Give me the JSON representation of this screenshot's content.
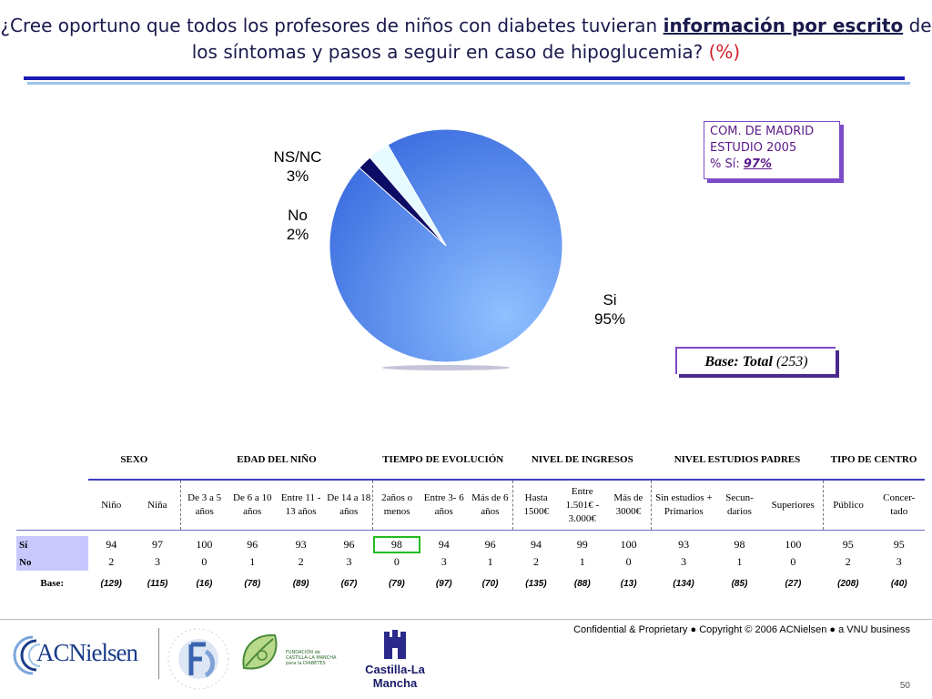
{
  "title": {
    "part1": "¿Cree oportuno que todos los profesores de niños con diabetes tuvieran",
    "emphasis": "información por escrito",
    "part2": "de los síntomas y pasos a seguir en caso de hipoglucemia?",
    "pct": "(%)"
  },
  "chart_data": [
    {
      "type": "pie",
      "slices": [
        {
          "label": "Si",
          "value": 95,
          "value_label": "95%",
          "color": "#5b8cf0"
        },
        {
          "label": "NS/NC",
          "value": 3,
          "value_label": "3%",
          "color": "#e6fbff"
        },
        {
          "label": "No",
          "value": 2,
          "value_label": "2%",
          "color": "#0c0c66"
        }
      ]
    },
    {
      "type": "table",
      "groups": [
        {
          "label": "SEXO",
          "span": 2
        },
        {
          "label": "EDAD DEL NIÑO",
          "span": 4
        },
        {
          "label": "TIEMPO DE EVOLUCIÓN",
          "span": 3
        },
        {
          "label": "NIVEL DE INGRESOS",
          "span": 3
        },
        {
          "label": "NIVEL ESTUDIOS PADRES",
          "span": 3
        },
        {
          "label": "TIPO DE CENTRO",
          "span": 2
        }
      ],
      "columns": [
        "Niño",
        "Niña",
        "De 3 a 5 años",
        "De 6 a 10 años",
        "Entre 11 - 13 años",
        "De 14 a 18 años",
        "2años o menos",
        "Entre 3- 6 años",
        "Más de 6 años",
        "Hasta 1500€",
        "Entre 1.501€ - 3.000€",
        "Más de 3000€",
        "Sin estudios + Primarios",
        "Secun- darios",
        "Superiores",
        "Público",
        "Concer- tado"
      ],
      "rows": [
        {
          "label": "Sí",
          "values": [
            94,
            97,
            100,
            96,
            93,
            96,
            98,
            94,
            96,
            94,
            99,
            100,
            93,
            98,
            100,
            95,
            95
          ]
        },
        {
          "label": "No",
          "values": [
            2,
            3,
            0,
            1,
            2,
            3,
            0,
            3,
            1,
            2,
            1,
            0,
            3,
            1,
            0,
            2,
            3
          ]
        }
      ],
      "base_label": "Base:",
      "bases": [
        "(129)",
        "(115)",
        "(16)",
        "(78)",
        "(89)",
        "(67)",
        "(79)",
        "(97)",
        "(70)",
        "(135)",
        "(88)",
        "(13)",
        "(134)",
        "(85)",
        "(27)",
        "(208)",
        "(40)"
      ]
    }
  ],
  "infobox": {
    "line1": "COM. DE MADRID",
    "line2": "ESTUDIO 2005",
    "line3_prefix": "% Sí:",
    "line3_value": "97%"
  },
  "basebox": {
    "label": "Base: Total",
    "value": "(253)"
  },
  "footer": {
    "text": "Confidential & Proprietary ● Copyright © 2006 ACNielsen ● a VNU business",
    "page": "50"
  },
  "logos": {
    "acnielsen": "ACNielsen",
    "fundacion_ring": "FUNDACION PARA LA DIABETES",
    "fundacion_clm": "FUNDACIÓN de CASTILLA-LA MANCHA para la DIABETES",
    "castilla": "Castilla-La Mancha"
  }
}
